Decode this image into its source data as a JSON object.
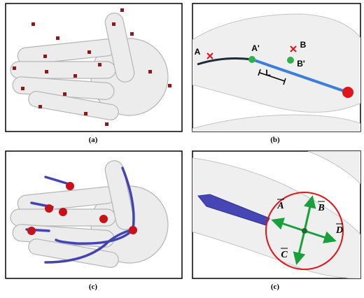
{
  "panels": [
    {
      "caption": "(a)"
    },
    {
      "caption": "(b)",
      "labels": [
        "A",
        "A'",
        "B",
        "B'",
        "L"
      ]
    },
    {
      "caption": "(c)"
    },
    {
      "caption": "(c)",
      "labels": [
        "A",
        "B",
        "C",
        "D"
      ]
    }
  ]
}
